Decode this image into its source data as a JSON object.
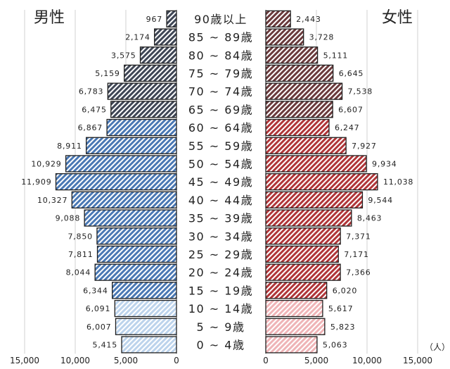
{
  "chart_data": {
    "type": "bar",
    "subtype": "population-pyramid",
    "unit_label": "（人）",
    "male_label": "男性",
    "female_label": "女性",
    "categories": [
      "90歳以上",
      "85～89歳",
      "80～84歳",
      "75～79歳",
      "70～74歳",
      "65～69歳",
      "60～64歳",
      "55～59歳",
      "50～54歳",
      "45～49歳",
      "40～44歳",
      "35～39歳",
      "30～34歳",
      "25～29歳",
      "20～24歳",
      "15～19歳",
      "10～14歳",
      "5～9歳",
      "0～4歳"
    ],
    "category_labels": [
      "90歳以上",
      "85 ~ 89歳",
      "80 ~ 84歳",
      "75 ~ 79歳",
      "70 ~ 74歳",
      "65 ~ 69歳",
      "60 ~ 64歳",
      "55 ~ 59歳",
      "50 ~ 54歳",
      "45 ~ 49歳",
      "40 ~ 44歳",
      "35 ~ 39歳",
      "30 ~ 34歳",
      "25 ~ 29歳",
      "20 ~ 24歳",
      "15 ~ 19歳",
      "10 ~ 14歳",
      "5 ~ 9歳",
      "0 ~ 4歳"
    ],
    "series": [
      {
        "name": "男性",
        "values": [
          967,
          2174,
          3575,
          5159,
          6783,
          6475,
          6867,
          8911,
          10929,
          11909,
          10327,
          9088,
          7850,
          7811,
          8044,
          6344,
          6091,
          6007,
          5415
        ]
      },
      {
        "name": "女性",
        "values": [
          2443,
          3728,
          5111,
          6645,
          7538,
          6607,
          6247,
          7927,
          9934,
          11038,
          9544,
          8463,
          7371,
          7171,
          7366,
          6020,
          5617,
          5823,
          5063
        ]
      }
    ],
    "value_labels_male": [
      "967",
      "2,174",
      "3,575",
      "5,159",
      "6,783",
      "6,475",
      "6,867",
      "8,911",
      "10,929",
      "11,909",
      "10,327",
      "9,088",
      "7,850",
      "7,811",
      "8,044",
      "6,344",
      "6,091",
      "6,007",
      "5,415"
    ],
    "value_labels_female": [
      "2,443",
      "3,728",
      "5,111",
      "6,645",
      "7,538",
      "6,607",
      "6,247",
      "7,927",
      "9,934",
      "11,038",
      "9,544",
      "8,463",
      "7,371",
      "7,171",
      "7,366",
      "6,020",
      "5,617",
      "5,823",
      "5,063"
    ],
    "x_ticks_male": [
      15000,
      10000,
      5000,
      0
    ],
    "x_ticks_female": [
      0,
      5000,
      10000,
      15000
    ],
    "x_tick_labels_male": [
      "15,000",
      "10,000",
      "5,000",
      "0"
    ],
    "x_tick_labels_female": [
      "0",
      "5,000",
      "10,000",
      "15,000"
    ],
    "xlim": [
      0,
      15000
    ],
    "grid": "vertical",
    "age_groups": {
      "elderly": 6,
      "working": 10,
      "young": 3
    },
    "colors": {
      "male_elderly": "#3f4655",
      "male_working": "#4a78b4",
      "male_young": "#bcd3ec",
      "female_elderly": "#6a3a3c",
      "female_working": "#b03538",
      "female_young": "#efb4b7",
      "outline": "#1f1f1f",
      "grid": "#d0d0d0"
    }
  }
}
